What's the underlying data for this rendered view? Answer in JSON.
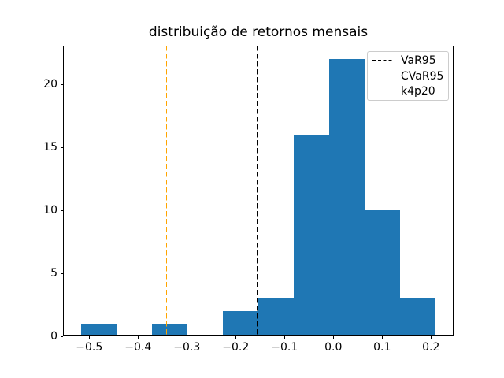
{
  "chart_data": {
    "type": "bar",
    "subtype": "histogram",
    "title": "distribuição de retornos mensais",
    "xlabel": "",
    "ylabel": "",
    "bin_edges": [
      -0.5166,
      -0.444,
      -0.3714,
      -0.2988,
      -0.2262,
      -0.1536,
      -0.081,
      -0.0084,
      0.0642,
      0.1368,
      0.2094
    ],
    "counts": [
      1,
      0,
      1,
      0,
      2,
      3,
      16,
      22,
      10,
      3
    ],
    "bar_color": "#1f77b4",
    "xlim": [
      -0.5537,
      0.2463
    ],
    "ylim": [
      0,
      23.1
    ],
    "x_ticks": [
      -0.5,
      -0.4,
      -0.3,
      -0.2,
      -0.1,
      0.0,
      0.1,
      0.2
    ],
    "x_tick_labels": [
      "−0.5",
      "−0.4",
      "−0.3",
      "−0.2",
      "−0.1",
      "0.0",
      "0.1",
      "0.2"
    ],
    "y_ticks": [
      0,
      5,
      10,
      15,
      20
    ],
    "y_tick_labels": [
      "0",
      "5",
      "10",
      "15",
      "20"
    ],
    "grid": false,
    "vlines": [
      {
        "label": "VaR95",
        "x": -0.156,
        "color": "#000000",
        "style": "dashed"
      },
      {
        "label": "CVaR95",
        "x": -0.342,
        "color": "#ffa500",
        "style": "dashed"
      }
    ],
    "legend": {
      "position": "upper right",
      "entries": [
        {
          "label": "VaR95",
          "color": "#000000",
          "line": "dashed"
        },
        {
          "label": "CVaR95",
          "color": "#ffa500",
          "line": "dashed"
        },
        {
          "label": "k4p20",
          "color": null,
          "line": "none"
        }
      ]
    }
  }
}
